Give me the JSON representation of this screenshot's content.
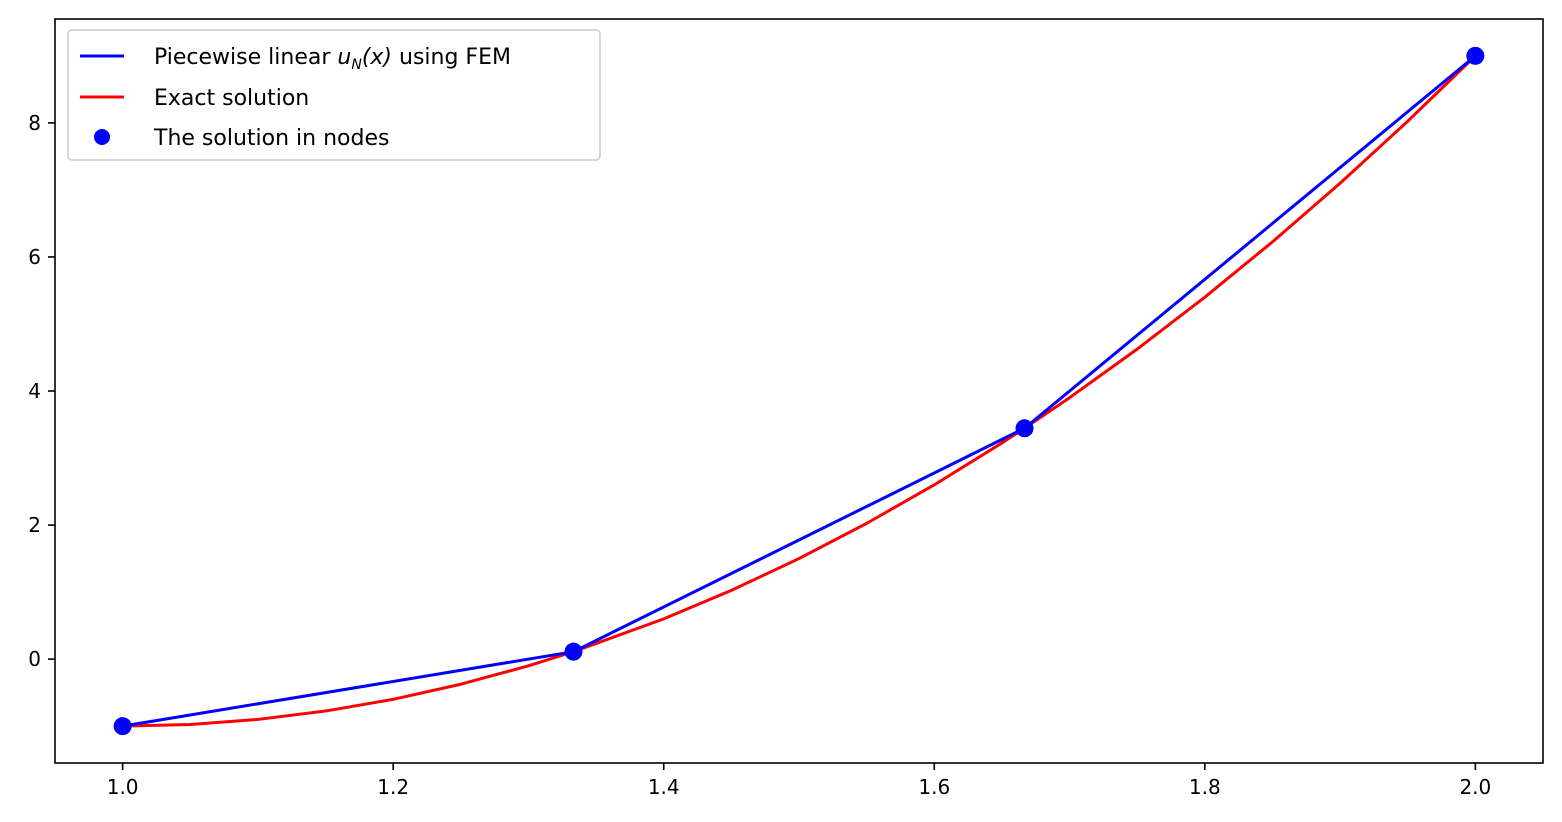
{
  "chart_data": {
    "type": "line",
    "title": "",
    "xlabel": "",
    "ylabel": "",
    "xlim": [
      0.95,
      2.05
    ],
    "ylim": [
      -1.55,
      9.55
    ],
    "xticks": [
      "1.0",
      "1.2",
      "1.4",
      "1.6",
      "1.8",
      "2.0"
    ],
    "yticks": [
      "0",
      "2",
      "4",
      "6",
      "8"
    ],
    "grid": false,
    "legend_position": "upper-left",
    "series": [
      {
        "name": "Piecewise linear u_N(x) using FEM",
        "legend_prefix": "Piecewise linear ",
        "legend_math_base": "u",
        "legend_math_sub": "N",
        "legend_math_arg": "(x)",
        "legend_suffix": " using FEM",
        "kind": "line",
        "color": "#0000ff",
        "x": [
          1.0,
          1.3333,
          1.6667,
          2.0
        ],
        "y": [
          -1.0,
          0.111,
          3.444,
          9.0
        ]
      },
      {
        "name": "Exact solution",
        "kind": "line",
        "color": "#ff0000",
        "x": [
          1.0,
          1.05,
          1.1,
          1.15,
          1.2,
          1.25,
          1.3,
          1.3333,
          1.4,
          1.45,
          1.5,
          1.55,
          1.6,
          1.65,
          1.6667,
          1.7,
          1.75,
          1.8,
          1.85,
          1.9,
          1.95,
          2.0
        ],
        "y": [
          -1.0,
          -0.975,
          -0.9,
          -0.775,
          -0.6,
          -0.375,
          -0.1,
          0.111,
          0.6,
          1.025,
          1.5,
          2.025,
          2.6,
          3.225,
          3.444,
          3.9,
          4.625,
          5.4,
          6.225,
          7.1,
          8.025,
          9.0
        ]
      },
      {
        "name": "The solution in nodes",
        "kind": "marker",
        "color": "#0000ff",
        "x": [
          1.0,
          1.3333,
          1.6667,
          2.0
        ],
        "y": [
          -1.0,
          0.111,
          3.444,
          9.0
        ]
      }
    ]
  }
}
